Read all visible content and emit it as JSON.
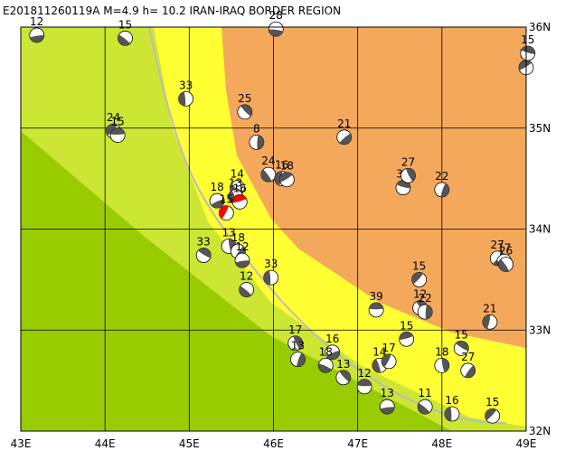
{
  "chart_data": {
    "type": "focal-map",
    "title": "E201811260119A  M=4.9  h= 10.2  IRAN-IRAQ BORDER REGION",
    "xlim": [
      43,
      49
    ],
    "ylim": [
      32,
      36
    ],
    "xticks": [
      {
        "value": 43,
        "label": "43E"
      },
      {
        "value": 44,
        "label": "44E"
      },
      {
        "value": 45,
        "label": "45E"
      },
      {
        "value": 46,
        "label": "46E"
      },
      {
        "value": 47,
        "label": "47E"
      },
      {
        "value": 48,
        "label": "48E"
      },
      {
        "value": 49,
        "label": "49E"
      }
    ],
    "yticks": [
      {
        "value": 32,
        "label": "32N"
      },
      {
        "value": 33,
        "label": "33N"
      },
      {
        "value": 34,
        "label": "34N"
      },
      {
        "value": 35,
        "label": "35N"
      },
      {
        "value": 36,
        "label": "36N"
      }
    ],
    "grid": true,
    "ball_color": "#555555",
    "events": [
      {
        "lon": 43.19,
        "lat": 35.92,
        "label": "12"
      },
      {
        "lon": 44.24,
        "lat": 35.89,
        "label": "15"
      },
      {
        "lon": 44.96,
        "lat": 35.29,
        "label": "33"
      },
      {
        "lon": 44.1,
        "lat": 34.97,
        "label": "24"
      },
      {
        "lon": 44.15,
        "lat": 34.93,
        "label": "15"
      },
      {
        "lon": 45.66,
        "lat": 35.16,
        "label": "25"
      },
      {
        "lon": 45.8,
        "lat": 34.86,
        "label": "8"
      },
      {
        "lon": 46.84,
        "lat": 34.91,
        "label": "21"
      },
      {
        "lon": 46.03,
        "lat": 35.98,
        "label": "28"
      },
      {
        "lon": 45.94,
        "lat": 34.54,
        "label": "24"
      },
      {
        "lon": 46.1,
        "lat": 34.5,
        "label": "16"
      },
      {
        "lon": 46.16,
        "lat": 34.49,
        "label": "18"
      },
      {
        "lon": 47.54,
        "lat": 34.41,
        "label": "30"
      },
      {
        "lon": 47.6,
        "lat": 34.53,
        "label": "27"
      },
      {
        "lon": 48.0,
        "lat": 34.39,
        "label": "22"
      },
      {
        "lon": 45.33,
        "lat": 34.28,
        "label": "18"
      },
      {
        "lon": 45.57,
        "lat": 34.41,
        "label": "14"
      },
      {
        "lon": 45.55,
        "lat": 34.32,
        "label": "13"
      },
      {
        "lon": 45.44,
        "lat": 34.16,
        "label": "15",
        "color": "#ff0000"
      },
      {
        "lon": 45.6,
        "lat": 34.27,
        "label": "16",
        "color": "#ff0000"
      },
      {
        "lon": 45.17,
        "lat": 33.74,
        "label": "33"
      },
      {
        "lon": 45.47,
        "lat": 33.83,
        "label": "13"
      },
      {
        "lon": 45.58,
        "lat": 33.78,
        "label": "18"
      },
      {
        "lon": 45.63,
        "lat": 33.69,
        "label": "12"
      },
      {
        "lon": 45.68,
        "lat": 33.4,
        "label": "12"
      },
      {
        "lon": 45.97,
        "lat": 33.52,
        "label": "33"
      },
      {
        "lon": 47.73,
        "lat": 33.5,
        "label": "15"
      },
      {
        "lon": 47.22,
        "lat": 33.2,
        "label": "39"
      },
      {
        "lon": 47.74,
        "lat": 33.22,
        "label": "12"
      },
      {
        "lon": 47.8,
        "lat": 33.18,
        "label": "22"
      },
      {
        "lon": 48.66,
        "lat": 33.71,
        "label": "27"
      },
      {
        "lon": 48.74,
        "lat": 33.68,
        "label": "17"
      },
      {
        "lon": 48.76,
        "lat": 33.65,
        "label": "26"
      },
      {
        "lon": 48.57,
        "lat": 33.08,
        "label": "21"
      },
      {
        "lon": 49.0,
        "lat": 35.6,
        "label": "15"
      },
      {
        "lon": 49.02,
        "lat": 35.74,
        "label": "15"
      },
      {
        "lon": 46.26,
        "lat": 32.87,
        "label": "17"
      },
      {
        "lon": 46.29,
        "lat": 32.71,
        "label": "13"
      },
      {
        "lon": 46.7,
        "lat": 32.78,
        "label": "16"
      },
      {
        "lon": 46.62,
        "lat": 32.65,
        "label": "18"
      },
      {
        "lon": 47.26,
        "lat": 32.65,
        "label": "14"
      },
      {
        "lon": 47.37,
        "lat": 32.69,
        "label": "17"
      },
      {
        "lon": 47.58,
        "lat": 32.91,
        "label": "15"
      },
      {
        "lon": 48.23,
        "lat": 32.82,
        "label": "15"
      },
      {
        "lon": 48.0,
        "lat": 32.65,
        "label": "18"
      },
      {
        "lon": 48.31,
        "lat": 32.6,
        "label": "27"
      },
      {
        "lon": 47.35,
        "lat": 32.24,
        "label": "13"
      },
      {
        "lon": 47.8,
        "lat": 32.24,
        "label": "11"
      },
      {
        "lon": 48.12,
        "lat": 32.17,
        "label": "16"
      },
      {
        "lon": 48.6,
        "lat": 32.15,
        "label": "15"
      },
      {
        "lon": 47.08,
        "lat": 32.44,
        "label": "12"
      },
      {
        "lon": 46.83,
        "lat": 32.53,
        "label": "13"
      }
    ]
  }
}
